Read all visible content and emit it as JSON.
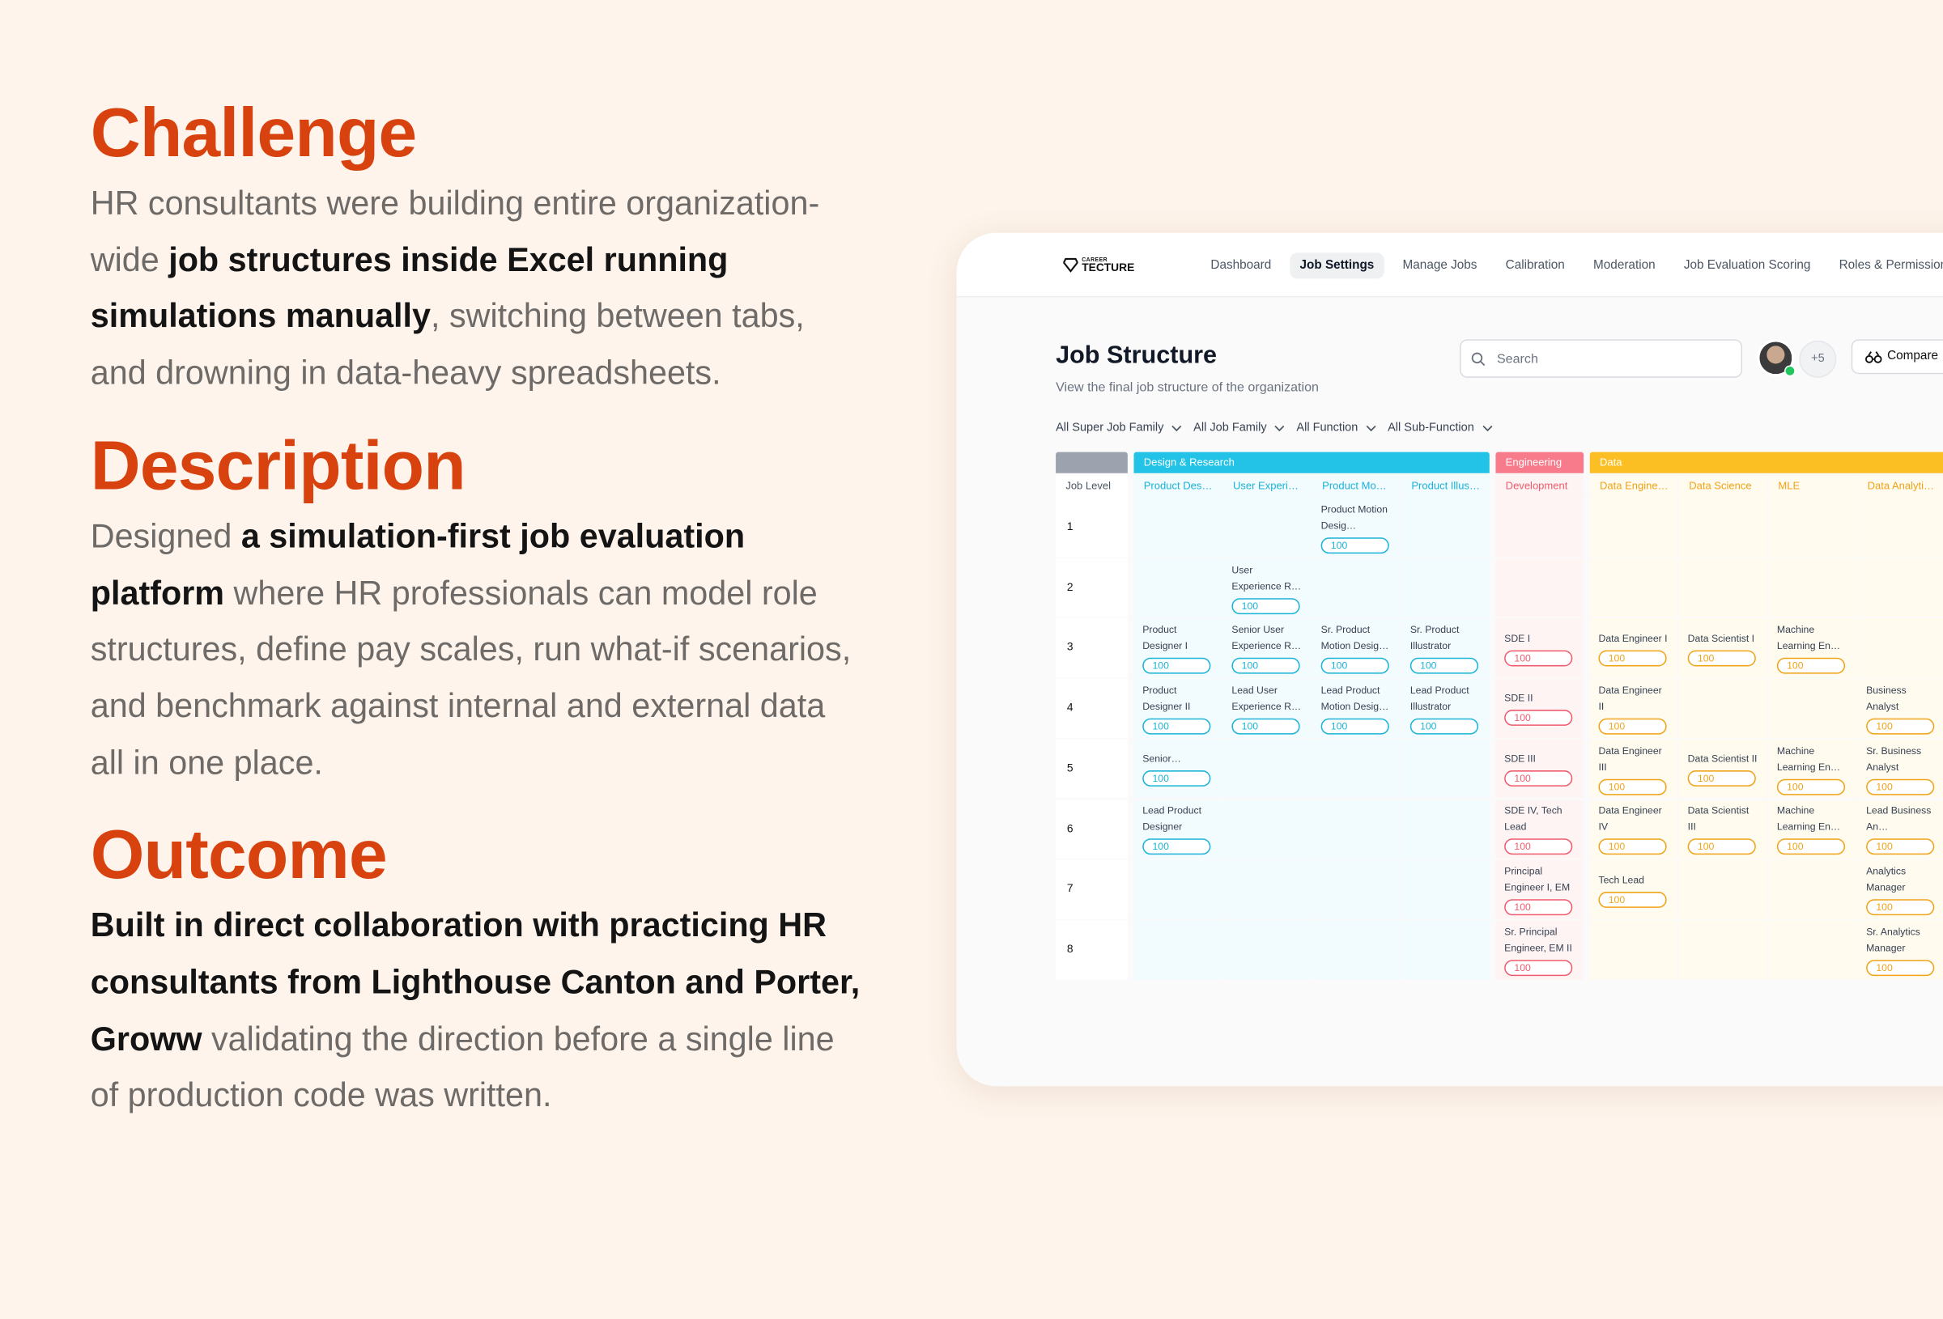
{
  "sections": [
    {
      "heading": "Challenge",
      "body": [
        {
          "text": "HR consultants were building entire organization-wide ",
          "bold": false
        },
        {
          "text": "job structures inside Excel running simulations manually",
          "bold": true
        },
        {
          "text": ", switching between tabs, and drowning in data-heavy spreadsheets.",
          "bold": false
        }
      ]
    },
    {
      "heading": "Description",
      "body": [
        {
          "text": "Designed ",
          "bold": false
        },
        {
          "text": "a simulation-first job evaluation platform",
          "bold": true
        },
        {
          "text": " where HR professionals can model role structures, define pay scales, run what-if scenarios, and benchmark against internal and external data  all in one place.",
          "bold": false
        }
      ]
    },
    {
      "heading": "Outcome",
      "body": [
        {
          "text": "Built in direct collaboration with practicing HR consultants from Lighthouse Canton and Porter, Groww",
          "bold": true
        },
        {
          "text": " validating the direction before a single line of production code was written.",
          "bold": false
        }
      ]
    }
  ],
  "app": {
    "logo": {
      "top": "CAREER",
      "main": "TECTURE"
    },
    "nav": [
      {
        "label": "Dashboard",
        "active": false
      },
      {
        "label": "Job Settings",
        "active": true
      },
      {
        "label": "Manage Jobs",
        "active": false
      },
      {
        "label": "Calibration",
        "active": false
      },
      {
        "label": "Moderation",
        "active": false
      },
      {
        "label": "Job Evaluation Scoring",
        "active": false
      },
      {
        "label": "Roles & Permissions",
        "active": false
      }
    ],
    "title": "Job Structure",
    "subtitle": "View the final job structure of the organization",
    "search": "Search",
    "extra_members": "+5",
    "compare": "Compare",
    "filters": [
      "All Super Job Family",
      "All Job Family",
      "All Function",
      "All Sub-Function"
    ],
    "table": {
      "level_header": "Job Level",
      "groups": [
        {
          "name": "Design & Research",
          "color": "#22c3e6",
          "tint": "#f2fbfe",
          "text_color": "#1bb3d8",
          "columns": [
            "Product Des…",
            "User Experi…",
            "Product Mo…",
            "Product Illus…"
          ]
        },
        {
          "name": "Engineering",
          "color": "#f77b8b",
          "tint": "#fff4f4",
          "text_color": "#ef5b6e",
          "columns": [
            "Development"
          ]
        },
        {
          "name": "Data",
          "color": "#fbbf24",
          "tint": "#fffbef",
          "text_color": "#f1a318",
          "columns": [
            "Data Engine…",
            "Data Science",
            "MLE",
            "Data Analyti…"
          ]
        }
      ],
      "rows": [
        {
          "level": 1,
          "cells": [
            null,
            null,
            {
              "title": "Product Motion Desig…",
              "score": 100
            },
            null,
            null,
            null,
            null,
            null,
            null
          ]
        },
        {
          "level": 2,
          "cells": [
            null,
            {
              "title": "User Experience R…",
              "score": 100
            },
            null,
            null,
            null,
            null,
            null,
            null,
            null
          ]
        },
        {
          "level": 3,
          "cells": [
            {
              "title": "Product Designer I",
              "score": 100
            },
            {
              "title": "Senior User Experience R…",
              "score": 100
            },
            {
              "title": "Sr. Product Motion Desig…",
              "score": 100
            },
            {
              "title": "Sr. Product Illustrator",
              "score": 100
            },
            {
              "title": "SDE I",
              "score": 100
            },
            {
              "title": "Data Engineer I",
              "score": 100
            },
            {
              "title": "Data Scientist I",
              "score": 100
            },
            {
              "title": "Machine Learning En…",
              "score": 100
            },
            null
          ]
        },
        {
          "level": 4,
          "cells": [
            {
              "title": "Product Designer II",
              "score": 100
            },
            {
              "title": "Lead User Experience R…",
              "score": 100
            },
            {
              "title": "Lead Product Motion Desig…",
              "score": 100
            },
            {
              "title": "Lead Product Illustrator",
              "score": 100
            },
            {
              "title": "SDE II",
              "score": 100
            },
            {
              "title": "Data Engineer II",
              "score": 100
            },
            null,
            null,
            {
              "title": "Business Analyst",
              "score": 100
            }
          ]
        },
        {
          "level": 5,
          "cells": [
            {
              "title": "Senior…",
              "score": 100
            },
            null,
            null,
            null,
            {
              "title": "SDE III",
              "score": 100
            },
            {
              "title": "Data Engineer III",
              "score": 100
            },
            {
              "title": "Data Scientist II",
              "score": 100
            },
            {
              "title": "Machine Learning En…",
              "score": 100
            },
            {
              "title": "Sr. Business Analyst",
              "score": 100
            }
          ]
        },
        {
          "level": 6,
          "cells": [
            {
              "title": "Lead Product Designer",
              "score": 100
            },
            null,
            null,
            null,
            {
              "title": "SDE IV, Tech Lead",
              "score": 100
            },
            {
              "title": "Data Engineer IV",
              "score": 100
            },
            {
              "title": "Data Scientist III",
              "score": 100
            },
            {
              "title": "Machine Learning En…",
              "score": 100
            },
            {
              "title": "Lead Business An…",
              "score": 100
            }
          ]
        },
        {
          "level": 7,
          "cells": [
            null,
            null,
            null,
            null,
            {
              "title": "Principal Engineer I, EM I",
              "score": 100
            },
            {
              "title": "Tech Lead",
              "score": 100
            },
            null,
            null,
            {
              "title": "Analytics Manager",
              "score": 100
            }
          ]
        },
        {
          "level": 8,
          "cells": [
            null,
            null,
            null,
            null,
            {
              "title": "Sr. Principal Engineer, EM II",
              "score": 100
            },
            null,
            null,
            null,
            {
              "title": "Sr. Analytics Manager",
              "score": 100
            }
          ]
        }
      ]
    }
  }
}
